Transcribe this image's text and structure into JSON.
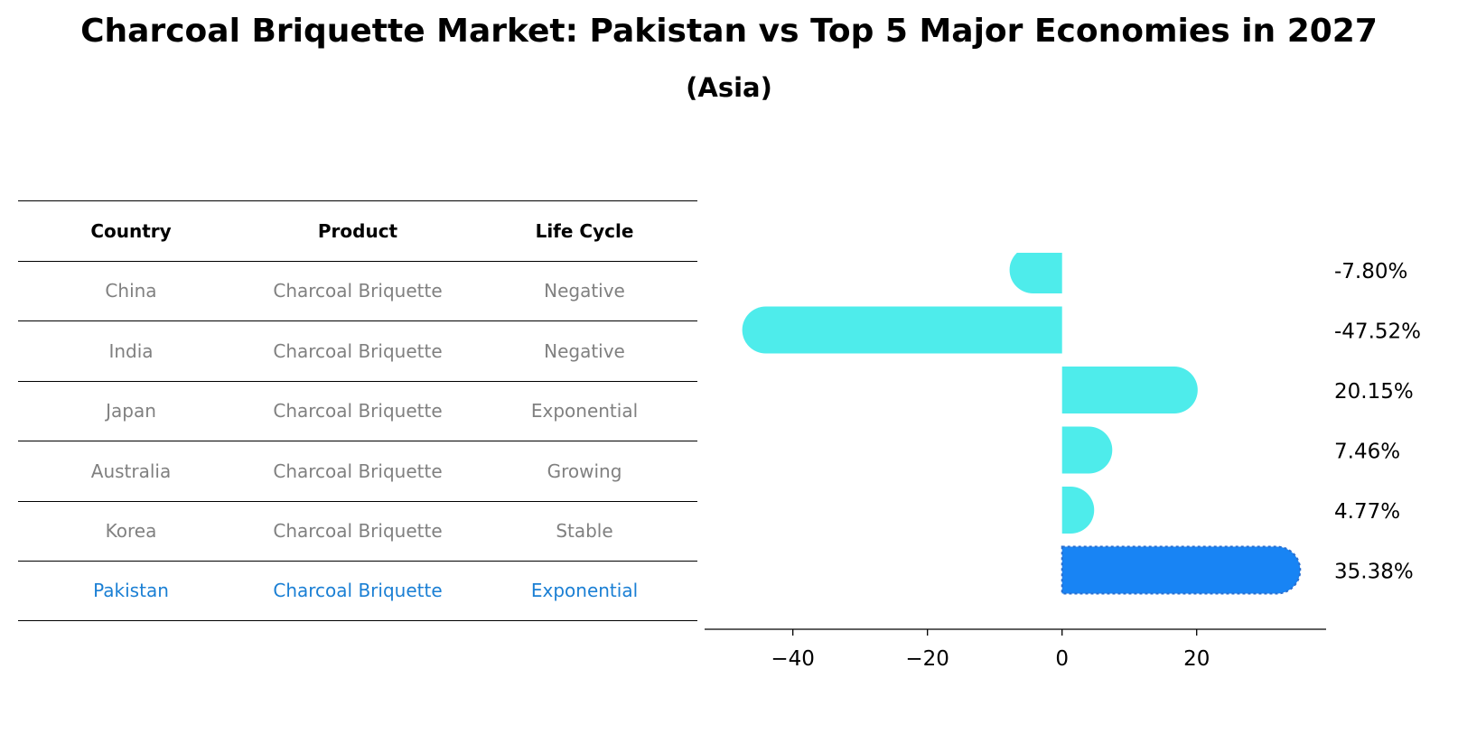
{
  "title": "Charcoal Briquette Market: Pakistan vs Top 5 Major Economies in 2027",
  "subtitle": "(Asia)",
  "table": {
    "headers": [
      "Country",
      "Product",
      "Life Cycle"
    ],
    "rows": [
      [
        "China",
        "Charcoal Briquette",
        "Negative"
      ],
      [
        "India",
        "Charcoal Briquette",
        "Negative"
      ],
      [
        "Japan",
        "Charcoal Briquette",
        "Exponential"
      ],
      [
        "Australia",
        "Charcoal Briquette",
        "Growing"
      ],
      [
        "Korea",
        "Charcoal Briquette",
        "Stable"
      ],
      [
        "Pakistan",
        "Charcoal Briquette",
        "Exponential"
      ]
    ]
  },
  "colors": {
    "bar": "#4eeceb",
    "highlight": "#1884f4",
    "highlight_text": "#1a7fd4",
    "muted_text": "#808080"
  },
  "chart_data": {
    "type": "bar",
    "orientation": "horizontal",
    "categories": [
      "China",
      "India",
      "Japan",
      "Australia",
      "Korea",
      "Pakistan"
    ],
    "values": [
      -7.8,
      -47.52,
      20.15,
      7.46,
      4.77,
      35.38
    ],
    "value_labels": [
      "-7.80%",
      "-47.52%",
      "20.15%",
      "7.46%",
      "4.77%",
      "35.38%"
    ],
    "highlight_category": "Pakistan",
    "xlim": [
      -51.5,
      39.5
    ],
    "xticks": [
      -40,
      -20,
      0,
      20
    ],
    "xtick_labels": [
      "−40",
      "−20",
      "0",
      "20"
    ],
    "grid": false,
    "legend": "none"
  }
}
